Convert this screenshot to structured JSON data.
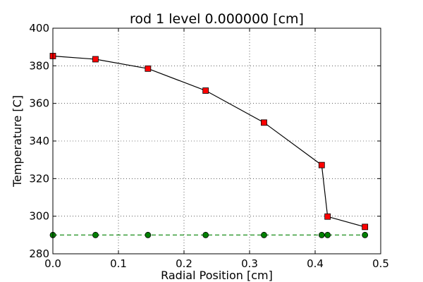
{
  "chart_data": {
    "type": "line",
    "title": "rod 1 level 0.000000 [cm]",
    "xlabel": "Radial Position [cm]",
    "ylabel": "Temperature [C]",
    "xlim": [
      0.0,
      0.5
    ],
    "ylim": [
      280,
      400
    ],
    "x_ticks": [
      "0.0",
      "0.1",
      "0.2",
      "0.3",
      "0.4",
      "0.5"
    ],
    "y_ticks": [
      "280",
      "300",
      "320",
      "340",
      "360",
      "380",
      "400"
    ],
    "grid": true,
    "legend": false,
    "series": [
      {
        "color": "#000000",
        "marker_color": "#ff0000",
        "marker": "square",
        "linestyle": "solid",
        "x": [
          0.0,
          0.065,
          0.145,
          0.233,
          0.322,
          0.41,
          0.419,
          0.476
        ],
        "y": [
          385.2,
          383.5,
          378.5,
          366.8,
          349.8,
          327.2,
          299.8,
          294.3
        ]
      },
      {
        "color": "#008000",
        "marker_color": "#008000",
        "marker": "circle",
        "linestyle": "dashed",
        "x": [
          0.0,
          0.065,
          0.145,
          0.233,
          0.322,
          0.41,
          0.419,
          0.476
        ],
        "y": [
          290,
          290,
          290,
          290,
          290,
          290,
          290,
          290
        ]
      }
    ]
  }
}
